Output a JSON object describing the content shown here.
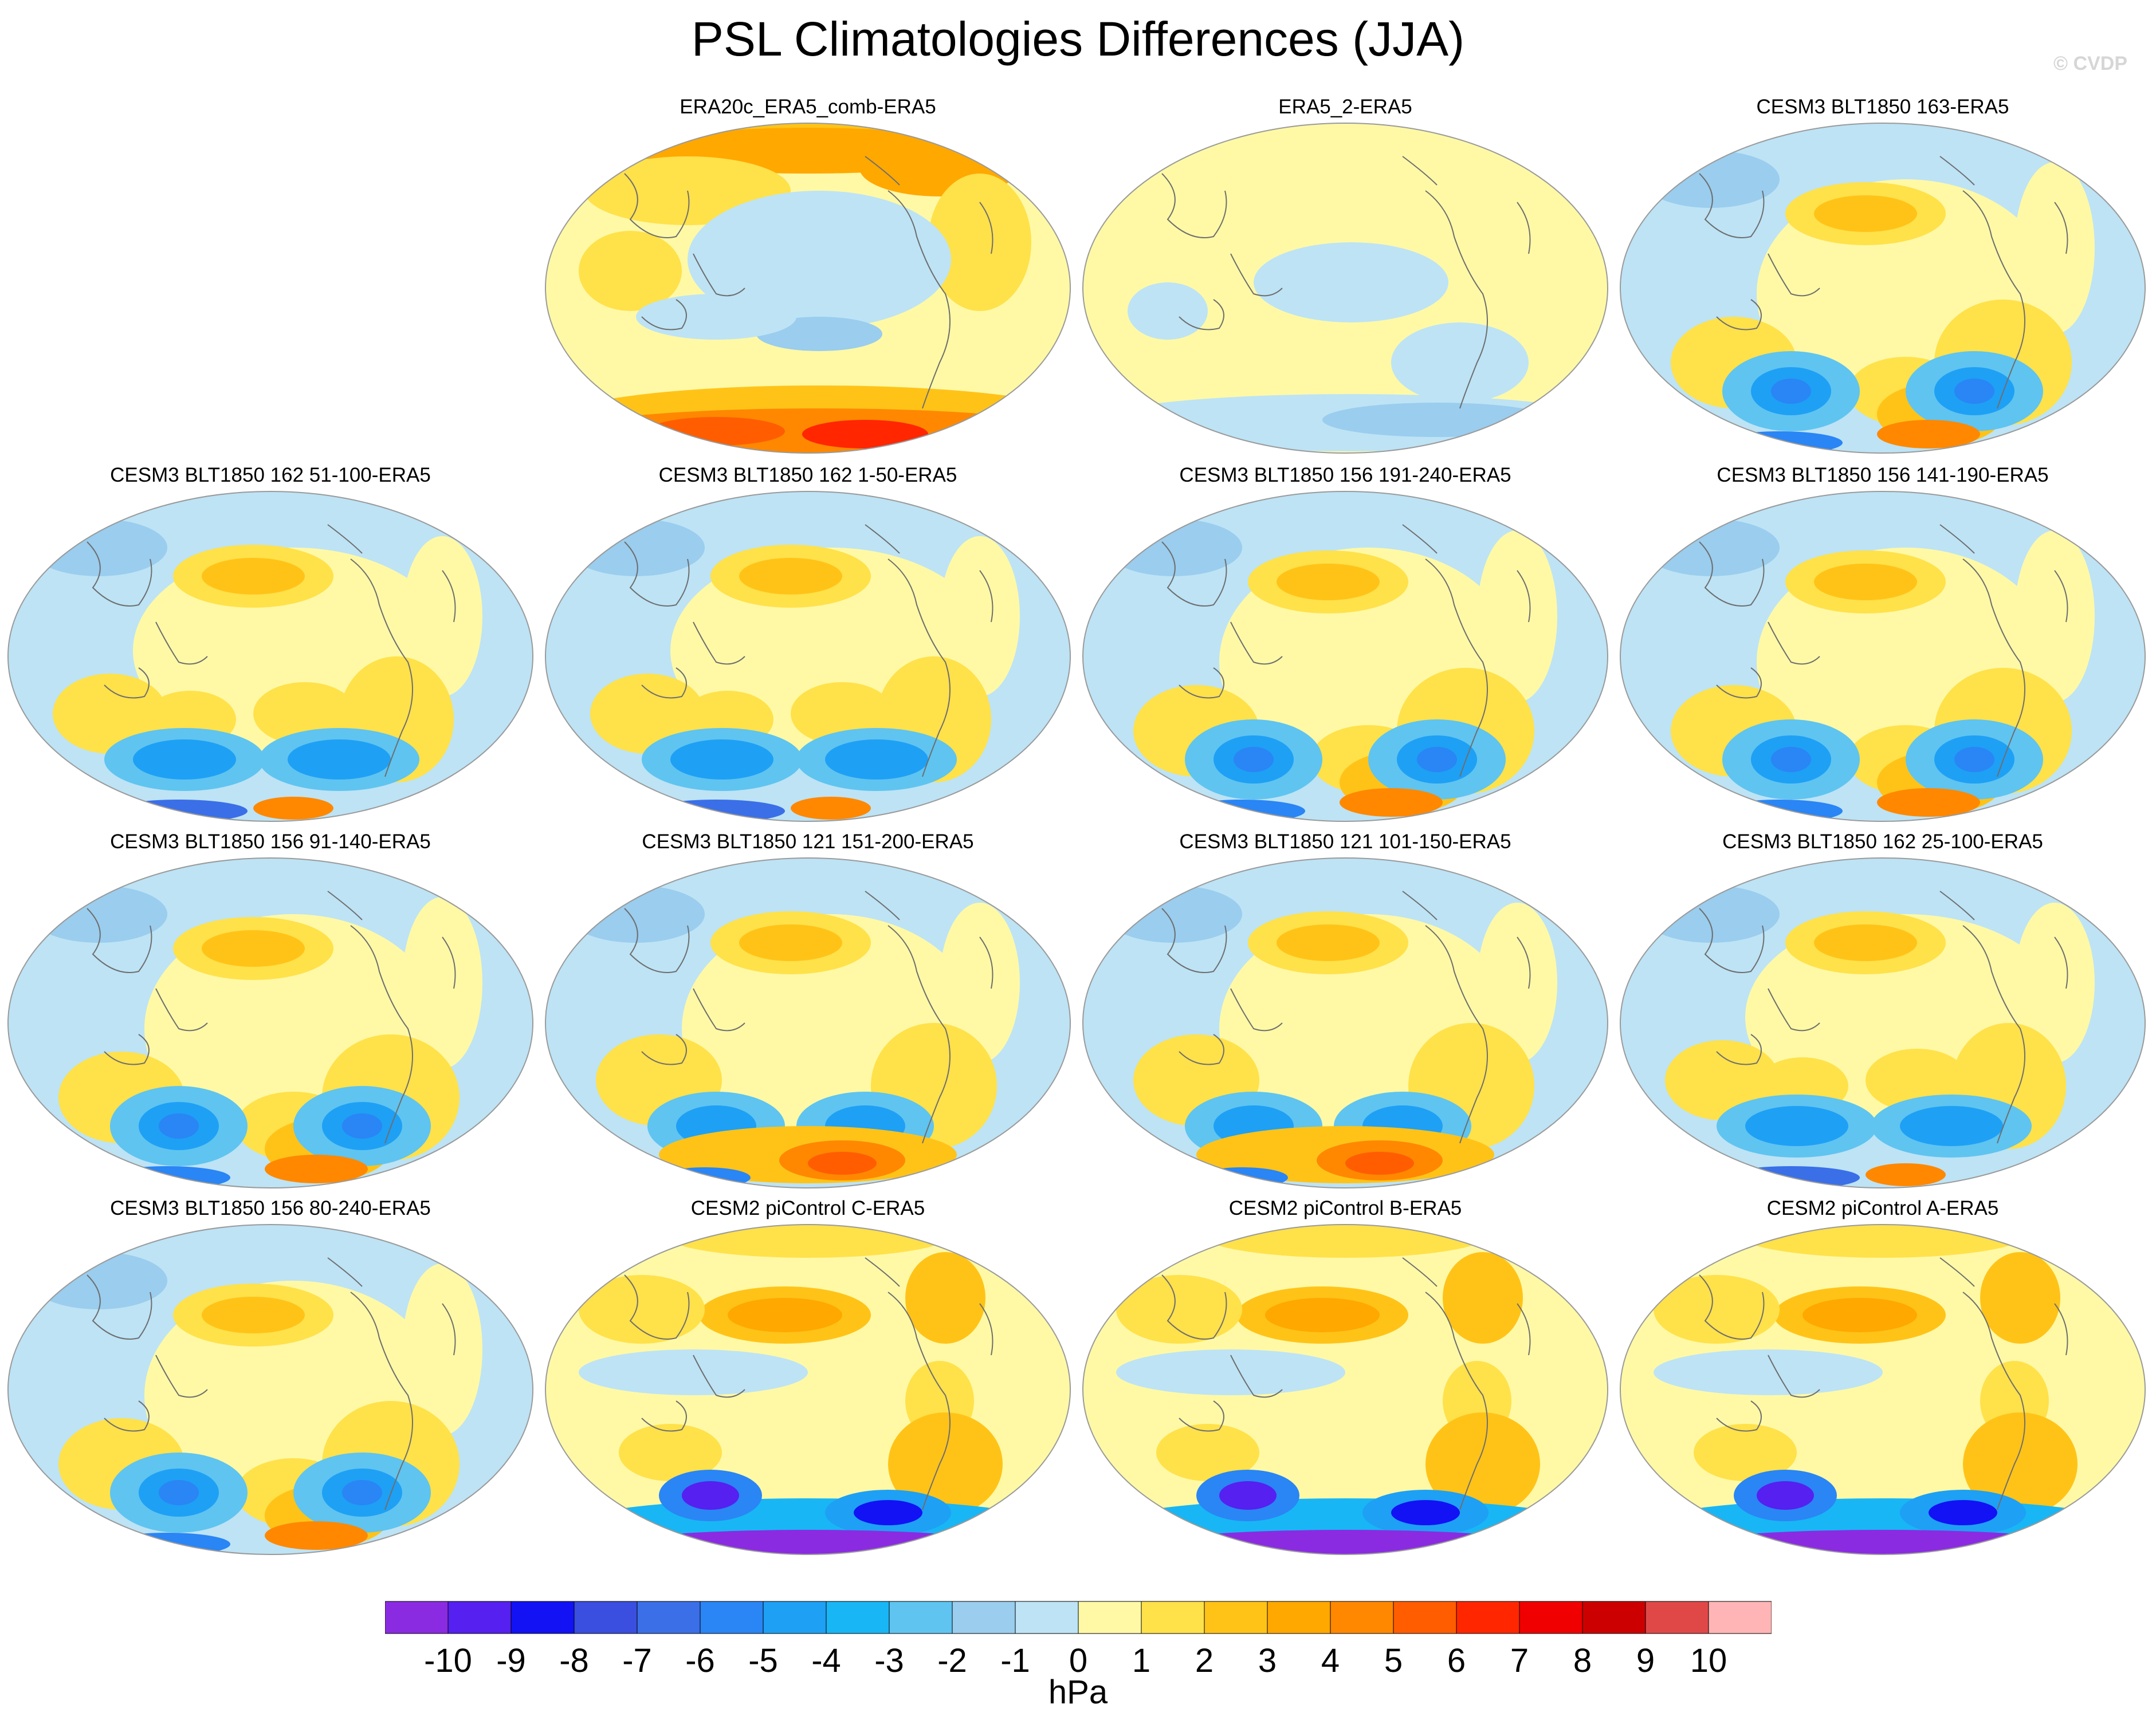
{
  "title": "PSL Climatologies Differences (JJA)",
  "copyright": "© CVDP",
  "units": "hPa",
  "colorbar": {
    "labels": [
      "-10",
      "-9",
      "-8",
      "-7",
      "-6",
      "-5",
      "-4",
      "-3",
      "-2",
      "-1",
      "0",
      "1",
      "2",
      "3",
      "4",
      "5",
      "6",
      "7",
      "8",
      "9",
      "10"
    ],
    "colors": [
      "#8a2be2",
      "#5520f0",
      "#1212f5",
      "#3a4ee0",
      "#3a6fe8",
      "#2a85f5",
      "#1ea0f5",
      "#18b6f5",
      "#5fc4f0",
      "#9acdee",
      "#bde3f5",
      "#fff9a6",
      "#ffe14a",
      "#ffc318",
      "#ffa800",
      "#ff8800",
      "#ff5d00",
      "#ff2600",
      "#f00000",
      "#cc0000",
      "#e04848",
      "#ffb5b5"
    ]
  },
  "panels": [
    {
      "title": "ERA20c_ERA5_comb-ERA5",
      "row": 0,
      "col": 1,
      "pattern": "era20c"
    },
    {
      "title": "ERA5_2-ERA5",
      "row": 0,
      "col": 2,
      "pattern": "era5"
    },
    {
      "title": "CESM3 BLT1850 163-ERA5",
      "row": 0,
      "col": 3,
      "pattern": "cesm3a"
    },
    {
      "title": "CESM3 BLT1850 162 51-100-ERA5",
      "row": 1,
      "col": 0,
      "pattern": "cesm3b"
    },
    {
      "title": "CESM3 BLT1850 162 1-50-ERA5",
      "row": 1,
      "col": 1,
      "pattern": "cesm3b"
    },
    {
      "title": "CESM3 BLT1850 156 191-240-ERA5",
      "row": 1,
      "col": 2,
      "pattern": "cesm3a"
    },
    {
      "title": "CESM3 BLT1850 156 141-190-ERA5",
      "row": 1,
      "col": 3,
      "pattern": "cesm3a"
    },
    {
      "title": "CESM3 BLT1850 156 91-140-ERA5",
      "row": 2,
      "col": 0,
      "pattern": "cesm3a"
    },
    {
      "title": "CESM3 BLT1850 121 151-200-ERA5",
      "row": 2,
      "col": 1,
      "pattern": "cesm3c"
    },
    {
      "title": "CESM3 BLT1850 121 101-150-ERA5",
      "row": 2,
      "col": 2,
      "pattern": "cesm3c"
    },
    {
      "title": "CESM3 BLT1850 162 25-100-ERA5",
      "row": 2,
      "col": 3,
      "pattern": "cesm3b"
    },
    {
      "title": "CESM3 BLT1850 156 80-240-ERA5",
      "row": 3,
      "col": 0,
      "pattern": "cesm3a"
    },
    {
      "title": "CESM2 piControl C-ERA5",
      "row": 3,
      "col": 1,
      "pattern": "cesm2"
    },
    {
      "title": "CESM2 piControl B-ERA5",
      "row": 3,
      "col": 2,
      "pattern": "cesm2"
    },
    {
      "title": "CESM2 piControl A-ERA5",
      "row": 3,
      "col": 3,
      "pattern": "cesm2"
    }
  ]
}
